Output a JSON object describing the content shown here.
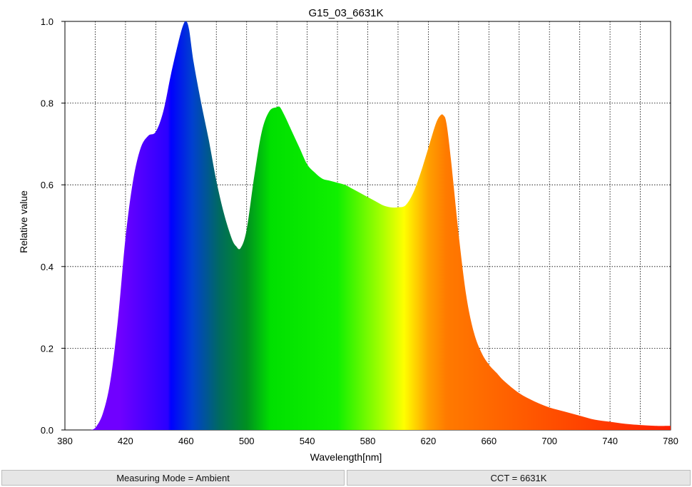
{
  "chart_data": {
    "type": "area",
    "title": "G15_03_6631K",
    "xlabel": "Wavelength[nm]",
    "ylabel": "Relative value",
    "xlim": [
      380,
      780
    ],
    "ylim": [
      0,
      1.0
    ],
    "xticks": [
      380,
      420,
      460,
      500,
      540,
      580,
      620,
      660,
      700,
      740,
      780
    ],
    "xtick_labels": [
      "380",
      "420",
      "460",
      "500",
      "540",
      "580",
      "620",
      "660",
      "700",
      "740",
      "780"
    ],
    "yticks": [
      0,
      0.2,
      0.4,
      0.6,
      0.8,
      1.0
    ],
    "ytick_labels": [
      "0.0",
      "0.2",
      "0.4",
      "0.6",
      "0.8",
      "1.0"
    ],
    "grid": true,
    "fill": "visible-spectrum gradient",
    "x": [
      397,
      400,
      405,
      410,
      415,
      420,
      425,
      430,
      435,
      440,
      445,
      450,
      455,
      458,
      460,
      462,
      465,
      470,
      475,
      480,
      485,
      490,
      493,
      496,
      500,
      505,
      510,
      515,
      520,
      522,
      525,
      530,
      535,
      540,
      545,
      550,
      555,
      560,
      565,
      570,
      575,
      580,
      585,
      590,
      595,
      600,
      605,
      610,
      615,
      620,
      625,
      628,
      630,
      632,
      635,
      640,
      645,
      650,
      655,
      660,
      665,
      670,
      680,
      690,
      700,
      710,
      720,
      730,
      740,
      750,
      760,
      770,
      780
    ],
    "y": [
      0.0,
      0.005,
      0.04,
      0.12,
      0.27,
      0.47,
      0.61,
      0.69,
      0.72,
      0.73,
      0.78,
      0.87,
      0.95,
      0.99,
      1.0,
      0.98,
      0.9,
      0.8,
      0.71,
      0.61,
      0.53,
      0.47,
      0.45,
      0.445,
      0.49,
      0.62,
      0.73,
      0.78,
      0.79,
      0.79,
      0.77,
      0.73,
      0.69,
      0.65,
      0.63,
      0.615,
      0.61,
      0.605,
      0.6,
      0.59,
      0.58,
      0.57,
      0.56,
      0.55,
      0.545,
      0.545,
      0.55,
      0.58,
      0.63,
      0.69,
      0.75,
      0.77,
      0.77,
      0.75,
      0.66,
      0.48,
      0.33,
      0.24,
      0.19,
      0.16,
      0.14,
      0.12,
      0.09,
      0.07,
      0.055,
      0.045,
      0.035,
      0.025,
      0.02,
      0.015,
      0.012,
      0.01,
      0.01
    ]
  },
  "footer": {
    "measuring_mode": "Measuring Mode = Ambient",
    "cct": "CCT = 6631K"
  }
}
